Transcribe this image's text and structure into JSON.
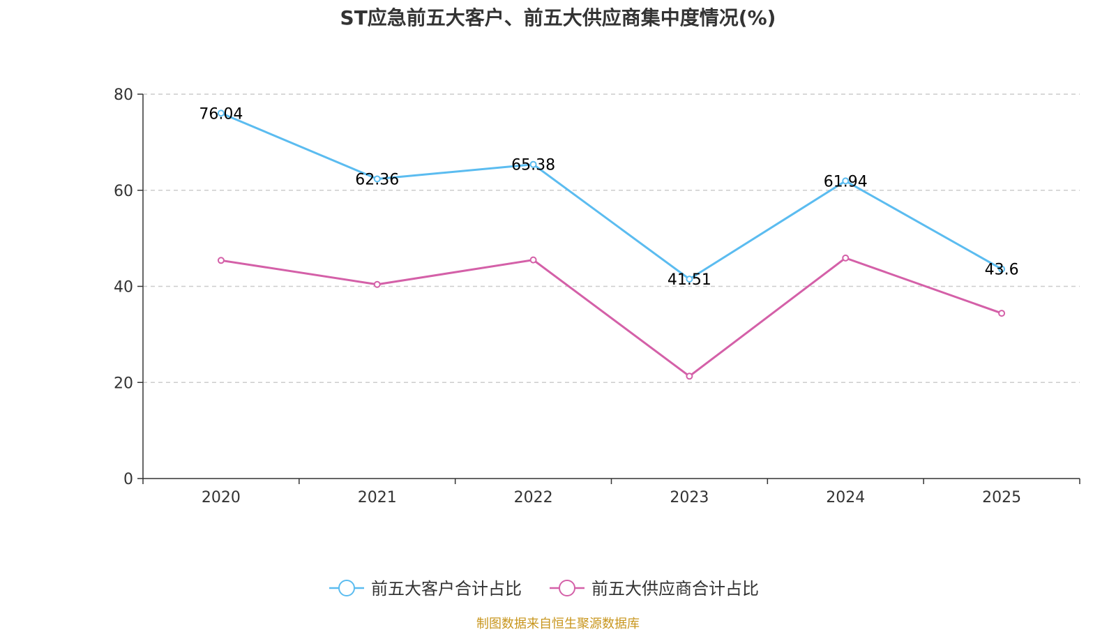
{
  "chart_data": {
    "type": "line",
    "title": "ST应急前五大客户、前五大供应商集中度情况(%)",
    "categories": [
      "2020",
      "2021",
      "2022",
      "2023",
      "2024",
      "2025"
    ],
    "series": [
      {
        "name": "前五大客户合计占比",
        "color": "#5bbcf0",
        "values": [
          76.04,
          62.36,
          65.38,
          41.51,
          61.94,
          43.6
        ],
        "labels": [
          "76.04",
          "62.36",
          "65.38",
          "41.51",
          "61.94",
          "43.6"
        ],
        "show_labels": true
      },
      {
        "name": "前五大供应商合计占比",
        "color": "#d460a8",
        "values": [
          45.4,
          40.4,
          45.5,
          21.3,
          45.9,
          34.4
        ],
        "show_labels": false
      }
    ],
    "ylim": [
      0,
      80
    ],
    "yticks": [
      "0",
      "20",
      "40",
      "60",
      "80"
    ],
    "grid": true,
    "legend": "bottom-center",
    "xlabel": "",
    "ylabel": ""
  },
  "source_note": "制图数据来自恒生聚源数据库"
}
